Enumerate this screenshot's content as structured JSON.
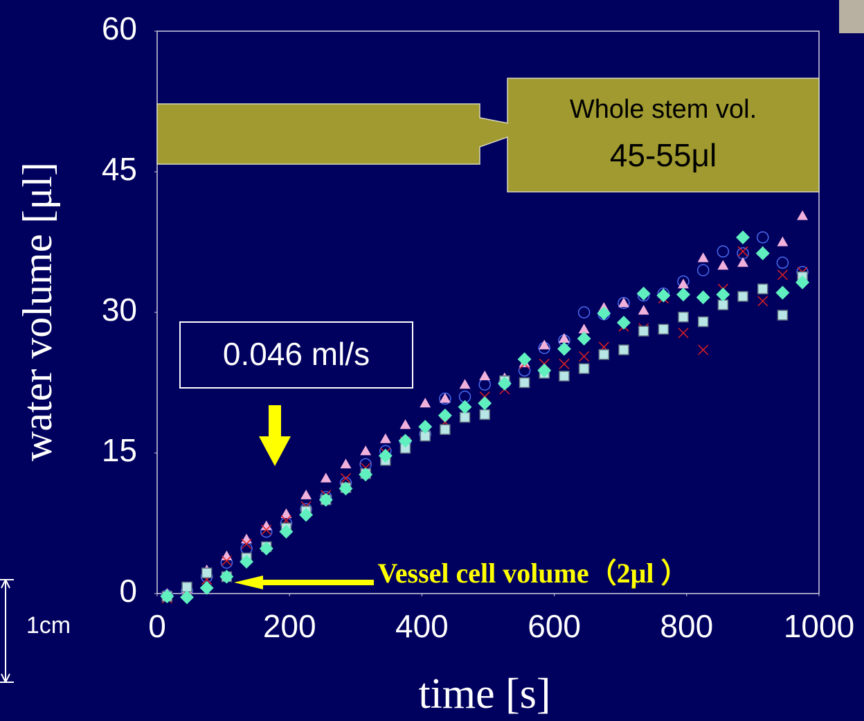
{
  "chart_data": {
    "type": "scatter",
    "xlabel": "time [s]",
    "ylabel": "water volume [μl]",
    "xlim": [
      0,
      1000
    ],
    "xticks": [
      0,
      200,
      400,
      600,
      800,
      1000
    ],
    "ylim": [
      0,
      60
    ],
    "yticks": [
      0,
      15,
      30,
      45,
      60
    ],
    "x": [
      15,
      45,
      75,
      105,
      135,
      165,
      195,
      225,
      255,
      285,
      315,
      345,
      375,
      405,
      435,
      465,
      495,
      525,
      555,
      585,
      615,
      645,
      675,
      705,
      735,
      765,
      795,
      825,
      855,
      885,
      915,
      945,
      975
    ],
    "series": [
      {
        "marker": "circle",
        "color": "#4a6cf0",
        "values": [
          -0.2,
          0.3,
          1.8,
          3.3,
          4.8,
          6.6,
          7.5,
          9,
          10.3,
          11.8,
          13.8,
          15.2,
          16.2,
          17,
          20.8,
          21,
          22.3,
          22.5,
          23.8,
          26.2,
          27,
          30,
          29.8,
          31,
          31.8,
          32,
          33.3,
          34.5,
          36.5,
          36.3,
          38,
          35.3,
          34.3
        ]
      },
      {
        "marker": "triangle",
        "color": "#f0b0dc",
        "values": [
          0,
          0.5,
          2.5,
          4,
          5.8,
          7.2,
          8.5,
          10.5,
          12.3,
          13.8,
          15.2,
          16.5,
          18,
          20.3,
          20.8,
          22.3,
          23.2,
          23,
          24.6,
          26.5,
          27.2,
          28.2,
          30.5,
          31,
          30.2,
          32,
          33,
          35.8,
          35,
          35.3,
          36.5,
          37.5,
          40.3
        ]
      },
      {
        "marker": "x",
        "color": "#e02020",
        "values": [
          -0.5,
          0.3,
          1.5,
          3.5,
          5.3,
          6.8,
          7.8,
          9.3,
          10.5,
          12.3,
          13.4,
          15,
          16.2,
          17.5,
          18.3,
          19.5,
          21,
          21.8,
          24.5,
          24.5,
          24.5,
          25.3,
          26.3,
          28.5,
          28.3,
          31.5,
          27.8,
          26,
          32.5,
          36.5,
          31.2,
          34,
          34.3
        ]
      },
      {
        "marker": "square",
        "color": "#b8e6e6",
        "values": [
          -0.3,
          0.7,
          2.2,
          1.8,
          3.8,
          5,
          7,
          8.8,
          10,
          11.3,
          12.8,
          14.2,
          15.5,
          16.8,
          17.5,
          18.8,
          19.1,
          22.7,
          22.5,
          23.5,
          23.2,
          24,
          25.5,
          26,
          28,
          28.2,
          29.5,
          29,
          30.8,
          31.7,
          32.5,
          29.7,
          33.8
        ]
      },
      {
        "marker": "diamond",
        "color": "#60f0c0",
        "values": [
          -0.3,
          -0.4,
          0.6,
          1.8,
          3.4,
          4.8,
          6.6,
          8.4,
          10,
          11.2,
          12.7,
          14.7,
          16.3,
          17.8,
          19,
          19.9,
          20.3,
          22.4,
          25,
          23.8,
          26.1,
          27.2,
          29.9,
          28.9,
          32,
          31.8,
          31.9,
          31.6,
          31.9,
          38,
          36.3,
          32.1,
          33.2
        ]
      }
    ],
    "annotations": [
      "Whole stem vol.",
      "45-55μl",
      "0.046 ml/s",
      "Vessel cell volume（2μl ）",
      "1cm"
    ]
  }
}
